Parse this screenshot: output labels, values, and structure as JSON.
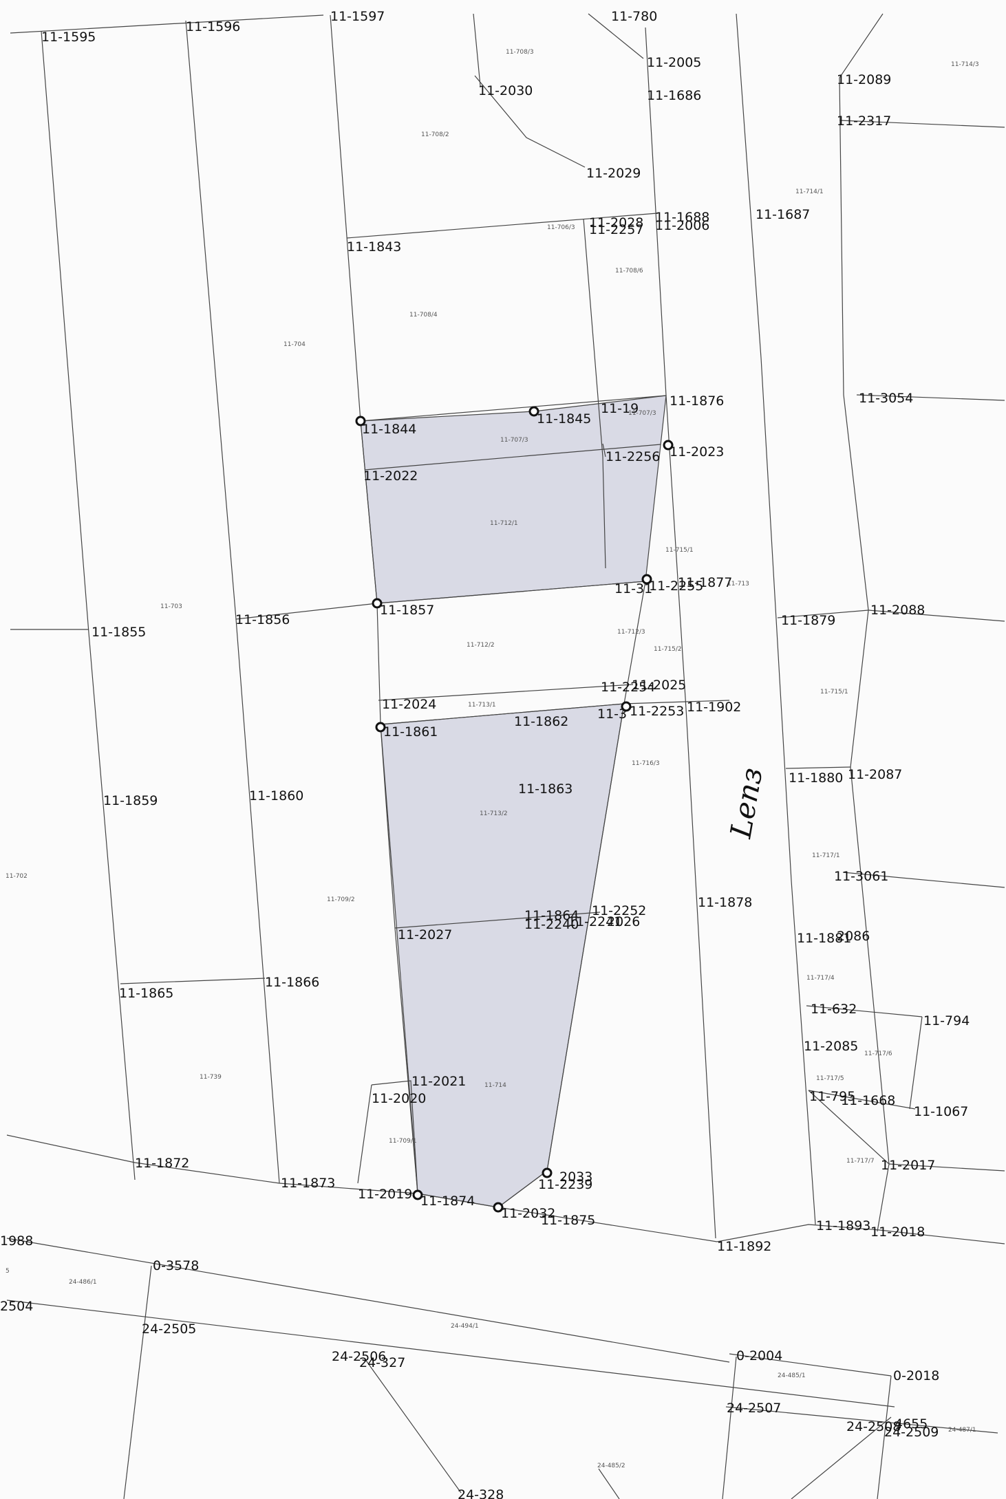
{
  "map": {
    "handwritten_note": "Lenз",
    "colors": {
      "highlight": "#d9dae5",
      "line": "#444444",
      "marker": "#111111"
    },
    "points": [
      {
        "id": "p1595",
        "label": "11-1595"
      },
      {
        "id": "p1596",
        "label": "11-1596"
      },
      {
        "id": "p1597",
        "label": "11-1597"
      },
      {
        "id": "p1780",
        "label": "11-780"
      },
      {
        "id": "p2005",
        "label": "11-2005"
      },
      {
        "id": "p2030",
        "label": "11-2030"
      },
      {
        "id": "p1686",
        "label": "11-1686"
      },
      {
        "id": "p2089",
        "label": "11-2089"
      },
      {
        "id": "p2317",
        "label": "11-2317"
      },
      {
        "id": "p2029",
        "label": "11-2029"
      },
      {
        "id": "p1843",
        "label": "11-1843"
      },
      {
        "id": "p2028",
        "label": "11-2028"
      },
      {
        "id": "p2257",
        "label": "11-2257"
      },
      {
        "id": "p1688",
        "label": "11-1688"
      },
      {
        "id": "p2006",
        "label": "11-2006"
      },
      {
        "id": "p1687",
        "label": "11-1687"
      },
      {
        "id": "p3054",
        "label": "11-3054"
      },
      {
        "id": "p1844",
        "label": "11-1844"
      },
      {
        "id": "p1845",
        "label": "11-1845"
      },
      {
        "id": "p19",
        "label": "11-19"
      },
      {
        "id": "p1876",
        "label": "11-1876"
      },
      {
        "id": "p2023",
        "label": "11-2023"
      },
      {
        "id": "p2256",
        "label": "11-2256"
      },
      {
        "id": "p2022",
        "label": "11-2022"
      },
      {
        "id": "p1855",
        "label": "11-1855"
      },
      {
        "id": "p1856",
        "label": "11-1856"
      },
      {
        "id": "p1857",
        "label": "11-1857"
      },
      {
        "id": "p31x",
        "label": "11-31"
      },
      {
        "id": "p2255",
        "label": "11-2255"
      },
      {
        "id": "p1877",
        "label": "11-1877"
      },
      {
        "id": "p1879",
        "label": "11-1879"
      },
      {
        "id": "p2088",
        "label": "11-2088"
      },
      {
        "id": "p2024",
        "label": "11-2024"
      },
      {
        "id": "p2254",
        "label": "11-2254"
      },
      {
        "id": "p2025",
        "label": "11-2025"
      },
      {
        "id": "p1861",
        "label": "11-1861"
      },
      {
        "id": "p1862",
        "label": "11-1862"
      },
      {
        "id": "p3x",
        "label": "11-3"
      },
      {
        "id": "p2253",
        "label": "11-2253"
      },
      {
        "id": "p1902",
        "label": "11-1902"
      },
      {
        "id": "p1859",
        "label": "11-1859"
      },
      {
        "id": "p1860",
        "label": "11-1860"
      },
      {
        "id": "p1863",
        "label": "11-1863"
      },
      {
        "id": "p1880",
        "label": "11-1880"
      },
      {
        "id": "p2087",
        "label": "11-2087"
      },
      {
        "id": "p3061",
        "label": "11-3061"
      },
      {
        "id": "p1864",
        "label": "11-1864"
      },
      {
        "id": "p2240",
        "label": "11-2240"
      },
      {
        "id": "p2241",
        "label": "11-2241"
      },
      {
        "id": "p2026",
        "label": "2026"
      },
      {
        "id": "p2252",
        "label": "11-2252"
      },
      {
        "id": "p2027",
        "label": "11-2027"
      },
      {
        "id": "p1878",
        "label": "11-1878"
      },
      {
        "id": "p1881",
        "label": "11-1881"
      },
      {
        "id": "p2086",
        "label": "2086"
      },
      {
        "id": "p1865",
        "label": "11-1865"
      },
      {
        "id": "p1866",
        "label": "11-1866"
      },
      {
        "id": "p632",
        "label": "11-632"
      },
      {
        "id": "p794",
        "label": "11-794"
      },
      {
        "id": "p2085",
        "label": "11-2085"
      },
      {
        "id": "p2021",
        "label": "11-2021"
      },
      {
        "id": "p2020",
        "label": "11-2020"
      },
      {
        "id": "p795",
        "label": "11-795"
      },
      {
        "id": "p1668",
        "label": "11-1668"
      },
      {
        "id": "p1067",
        "label": "11-1067"
      },
      {
        "id": "p1872",
        "label": "11-1872"
      },
      {
        "id": "p2017",
        "label": "11-2017"
      },
      {
        "id": "p2033",
        "label": "2033"
      },
      {
        "id": "p2239",
        "label": "11-2239"
      },
      {
        "id": "p1873",
        "label": "11-1873"
      },
      {
        "id": "p2019",
        "label": "11-2019"
      },
      {
        "id": "p1874",
        "label": "11-1874"
      },
      {
        "id": "p2032",
        "label": "11-2032"
      },
      {
        "id": "p1875",
        "label": "11-1875"
      },
      {
        "id": "p1893",
        "label": "11-1893"
      },
      {
        "id": "p2018",
        "label": "11-2018"
      },
      {
        "id": "p1892",
        "label": "11-1892"
      },
      {
        "id": "p1988",
        "label": "1988"
      },
      {
        "id": "p3578",
        "label": "0-3578"
      },
      {
        "id": "p2504",
        "label": "2504"
      },
      {
        "id": "p2505",
        "label": "24-2505"
      },
      {
        "id": "p2506",
        "label": "24-2506"
      },
      {
        "id": "p327",
        "label": "24-327"
      },
      {
        "id": "p02004",
        "label": "0-2004"
      },
      {
        "id": "p02018",
        "label": "0-2018"
      },
      {
        "id": "p2507",
        "label": "24-2507"
      },
      {
        "id": "p2508",
        "label": "24-2508"
      },
      {
        "id": "p4655",
        "label": "4655"
      },
      {
        "id": "p2509",
        "label": "24-2509"
      },
      {
        "id": "p328",
        "label": "24-328"
      }
    ],
    "parcels": [
      {
        "id": "a7083",
        "label": "11-708/3"
      },
      {
        "id": "a7082",
        "label": "11-708/2"
      },
      {
        "id": "a7063",
        "label": "11-706/3"
      },
      {
        "id": "a7086",
        "label": "11-708/6"
      },
      {
        "id": "a7084",
        "label": "11-708/4"
      },
      {
        "id": "a704",
        "label": "11-704"
      },
      {
        "id": "a7141",
        "label": "11-714/1"
      },
      {
        "id": "a7143",
        "label": "11-714/3"
      },
      {
        "id": "a7073a",
        "label": "11-707/3"
      },
      {
        "id": "a7073b",
        "label": "11-707/3"
      },
      {
        "id": "a7121",
        "label": "11-712/1"
      },
      {
        "id": "a703",
        "label": "11-703"
      },
      {
        "id": "a7151",
        "label": "11-715/1"
      },
      {
        "id": "a713",
        "label": "11-713"
      },
      {
        "id": "a7122",
        "label": "11-712/2"
      },
      {
        "id": "a7123",
        "label": "11-712/3"
      },
      {
        "id": "a7152",
        "label": "11-715/2"
      },
      {
        "id": "a7131",
        "label": "11-713/1"
      },
      {
        "id": "a7163",
        "label": "11-716/3"
      },
      {
        "id": "a7153",
        "label": "11-715/1"
      },
      {
        "id": "a7132",
        "label": "11-713/2"
      },
      {
        "id": "a7171",
        "label": "11-717/1"
      },
      {
        "id": "a702",
        "label": "11-702"
      },
      {
        "id": "a7092",
        "label": "11-709/2"
      },
      {
        "id": "a7174",
        "label": "11-717/4"
      },
      {
        "id": "a739",
        "label": "11-739"
      },
      {
        "id": "a7176",
        "label": "11-717/6"
      },
      {
        "id": "a714",
        "label": "11-714"
      },
      {
        "id": "a7175",
        "label": "11-717/5"
      },
      {
        "id": "a7091",
        "label": "11-709/1"
      },
      {
        "id": "a7177",
        "label": "11-717/7"
      },
      {
        "id": "a2404861",
        "label": "24-486/1"
      },
      {
        "id": "a2404841",
        "label": "24-494/1"
      },
      {
        "id": "a2404851",
        "label": "24-485/1"
      },
      {
        "id": "a2404871",
        "label": "24-487/1"
      },
      {
        "id": "a2404852",
        "label": "24-485/2"
      },
      {
        "id": "a5",
        "label": "5"
      }
    ]
  }
}
